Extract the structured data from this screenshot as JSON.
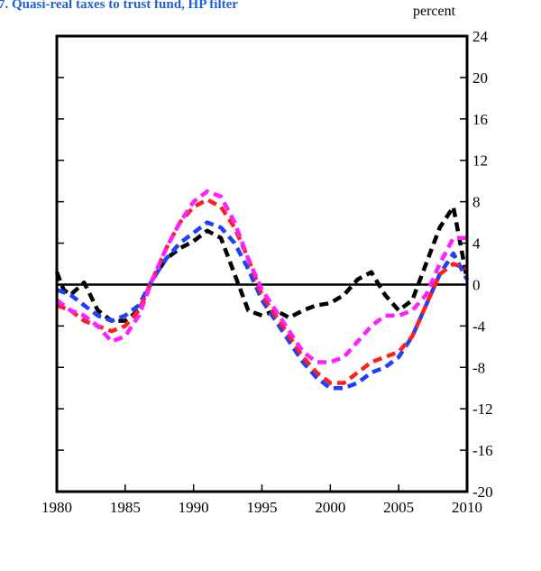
{
  "chart_data": {
    "type": "line",
    "title": "7. Quasi-real taxes to trust fund, HP filter",
    "unit_label": "percent",
    "xlim": [
      1980,
      2010
    ],
    "ylim": [
      -20,
      24
    ],
    "x_ticks": [
      1980,
      1985,
      1990,
      1995,
      2000,
      2005,
      2010
    ],
    "y_ticks": [
      24,
      20,
      16,
      12,
      8,
      4,
      0,
      -4,
      -8,
      -12,
      -16,
      -20
    ],
    "grid": false,
    "zero_line": true,
    "series": [
      {
        "color": "#000000",
        "x": [
          1980,
          1980.5,
          1981,
          1982,
          1983,
          1984,
          1985,
          1986,
          1987,
          1988,
          1989,
          1990,
          1991,
          1992,
          1993,
          1994,
          1995,
          1996,
          1997,
          1998,
          1999,
          2000,
          2001,
          2002,
          2003,
          2004,
          2005,
          2006,
          2007,
          2008,
          2009,
          2010
        ],
        "y": [
          1.2,
          -0.5,
          -1.0,
          0.2,
          -2.5,
          -3.5,
          -3.5,
          -2.5,
          0.5,
          2.5,
          3.5,
          4.2,
          5.2,
          4.5,
          1.0,
          -2.5,
          -3.0,
          -2.5,
          -3.2,
          -2.5,
          -2.0,
          -1.8,
          -1.0,
          0.5,
          1.2,
          -1.0,
          -2.5,
          -1.5,
          2.0,
          5.5,
          7.5,
          0.5
        ]
      },
      {
        "color": "#1f3fff",
        "x": [
          1980,
          1981,
          1982,
          1983,
          1984,
          1985,
          1986,
          1987,
          1988,
          1989,
          1990,
          1991,
          1992,
          1993,
          1994,
          1995,
          1996,
          1997,
          1998,
          1999,
          2000,
          2001,
          2002,
          2003,
          2004,
          2005,
          2006,
          2007,
          2008,
          2009,
          2010
        ],
        "y": [
          -0.5,
          -1.0,
          -2.0,
          -3.0,
          -3.5,
          -3.0,
          -2.0,
          0.5,
          2.5,
          4.0,
          5.0,
          6.0,
          5.5,
          4.0,
          1.5,
          -1.5,
          -3.5,
          -5.5,
          -7.5,
          -9.0,
          -10.0,
          -10.0,
          -9.5,
          -8.5,
          -8.0,
          -7.0,
          -5.0,
          -2.0,
          1.0,
          3.0,
          0.5
        ]
      },
      {
        "color": "#ff1f1f",
        "x": [
          1980,
          1981,
          1982,
          1983,
          1984,
          1985,
          1986,
          1987,
          1988,
          1989,
          1990,
          1991,
          1992,
          1993,
          1994,
          1995,
          1996,
          1997,
          1998,
          1999,
          2000,
          2001,
          2002,
          2003,
          2004,
          2005,
          2006,
          2007,
          2008,
          2009,
          2010
        ],
        "y": [
          -2.0,
          -2.5,
          -3.5,
          -4.0,
          -4.5,
          -4.0,
          -2.5,
          0.5,
          3.5,
          6.0,
          7.5,
          8.2,
          7.5,
          5.5,
          2.5,
          -1.0,
          -3.0,
          -5.0,
          -7.0,
          -8.5,
          -9.5,
          -9.5,
          -8.5,
          -7.5,
          -7.0,
          -6.5,
          -5.0,
          -2.0,
          1.0,
          2.0,
          1.5
        ]
      },
      {
        "color": "#ff1fff",
        "x": [
          1980,
          1981,
          1982,
          1983,
          1984,
          1985,
          1986,
          1987,
          1988,
          1989,
          1990,
          1991,
          1992,
          1993,
          1994,
          1995,
          1996,
          1997,
          1998,
          1999,
          2000,
          2001,
          2002,
          2003,
          2004,
          2005,
          2006,
          2007,
          2008,
          2009,
          2010
        ],
        "y": [
          -1.5,
          -2.5,
          -3.0,
          -4.0,
          -5.5,
          -5.0,
          -3.0,
          0.5,
          3.5,
          6.0,
          8.0,
          9.0,
          8.5,
          6.0,
          2.5,
          -0.5,
          -2.5,
          -4.5,
          -6.5,
          -7.5,
          -7.5,
          -7.0,
          -5.5,
          -4.0,
          -3.0,
          -3.0,
          -2.5,
          -1.0,
          2.0,
          4.5,
          4.5
        ]
      }
    ]
  }
}
